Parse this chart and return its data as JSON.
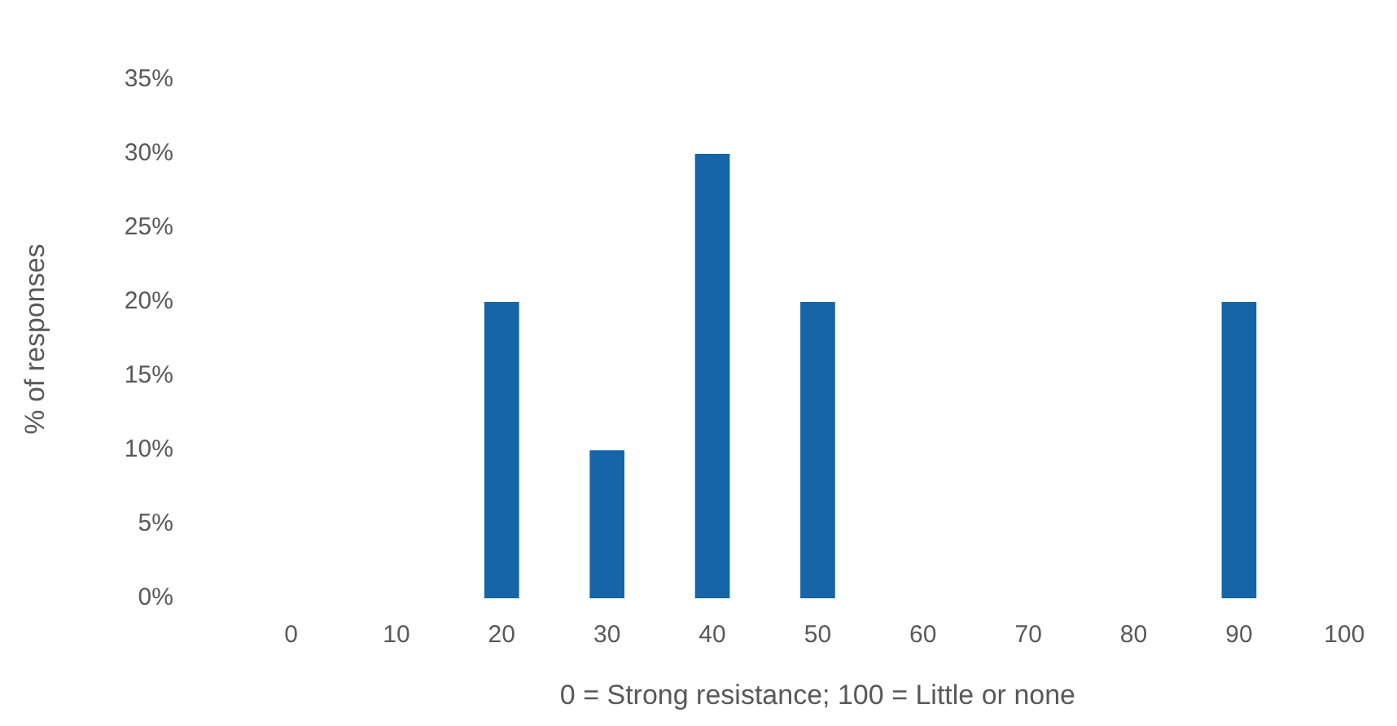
{
  "chart_data": {
    "type": "bar",
    "xlabel": "0 = Strong resistance; 100 = Little or none",
    "ylabel": "% of responses",
    "categories": [
      "0",
      "10",
      "20",
      "30",
      "40",
      "50",
      "60",
      "70",
      "80",
      "90",
      "100"
    ],
    "values": [
      0,
      0,
      20,
      10,
      30,
      20,
      0,
      0,
      0,
      20,
      0
    ],
    "color": "#1565a8",
    "ylim": [
      0,
      35
    ],
    "yticks": [
      {
        "value": 0,
        "label": "0%"
      },
      {
        "value": 5,
        "label": "5%"
      },
      {
        "value": 10,
        "label": "10%"
      },
      {
        "value": 15,
        "label": "15%"
      },
      {
        "value": 20,
        "label": "20%"
      },
      {
        "value": 25,
        "label": "25%"
      },
      {
        "value": 30,
        "label": "30%"
      },
      {
        "value": 35,
        "label": "35%"
      }
    ],
    "grid": false,
    "legend": false
  }
}
